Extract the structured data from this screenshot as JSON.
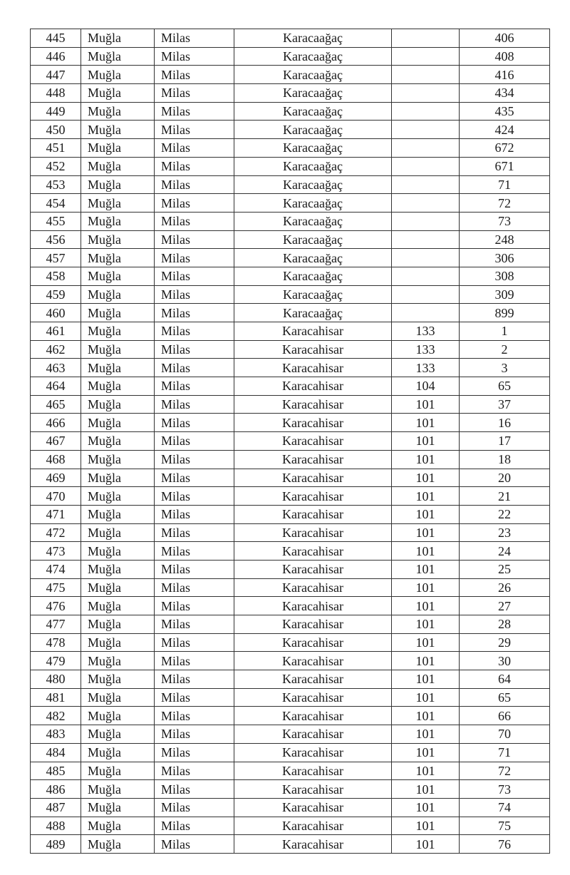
{
  "table": {
    "rows": [
      [
        "445",
        "Muğla",
        "Milas",
        "Karacaağaç",
        "",
        "406"
      ],
      [
        "446",
        "Muğla",
        "Milas",
        "Karacaağaç",
        "",
        "408"
      ],
      [
        "447",
        "Muğla",
        "Milas",
        "Karacaağaç",
        "",
        "416"
      ],
      [
        "448",
        "Muğla",
        "Milas",
        "Karacaağaç",
        "",
        "434"
      ],
      [
        "449",
        "Muğla",
        "Milas",
        "Karacaağaç",
        "",
        "435"
      ],
      [
        "450",
        "Muğla",
        "Milas",
        "Karacaağaç",
        "",
        "424"
      ],
      [
        "451",
        "Muğla",
        "Milas",
        "Karacaağaç",
        "",
        "672"
      ],
      [
        "452",
        "Muğla",
        "Milas",
        "Karacaağaç",
        "",
        "671"
      ],
      [
        "453",
        "Muğla",
        "Milas",
        "Karacaağaç",
        "",
        "71"
      ],
      [
        "454",
        "Muğla",
        "Milas",
        "Karacaağaç",
        "",
        "72"
      ],
      [
        "455",
        "Muğla",
        "Milas",
        "Karacaağaç",
        "",
        "73"
      ],
      [
        "456",
        "Muğla",
        "Milas",
        "Karacaağaç",
        "",
        "248"
      ],
      [
        "457",
        "Muğla",
        "Milas",
        "Karacaağaç",
        "",
        "306"
      ],
      [
        "458",
        "Muğla",
        "Milas",
        "Karacaağaç",
        "",
        "308"
      ],
      [
        "459",
        "Muğla",
        "Milas",
        "Karacaağaç",
        "",
        "309"
      ],
      [
        "460",
        "Muğla",
        "Milas",
        "Karacaağaç",
        "",
        "899"
      ],
      [
        "461",
        "Muğla",
        "Milas",
        "Karacahisar",
        "133",
        "1"
      ],
      [
        "462",
        "Muğla",
        "Milas",
        "Karacahisar",
        "133",
        "2"
      ],
      [
        "463",
        "Muğla",
        "Milas",
        "Karacahisar",
        "133",
        "3"
      ],
      [
        "464",
        "Muğla",
        "Milas",
        "Karacahisar",
        "104",
        "65"
      ],
      [
        "465",
        "Muğla",
        "Milas",
        "Karacahisar",
        "101",
        "37"
      ],
      [
        "466",
        "Muğla",
        "Milas",
        "Karacahisar",
        "101",
        "16"
      ],
      [
        "467",
        "Muğla",
        "Milas",
        "Karacahisar",
        "101",
        "17"
      ],
      [
        "468",
        "Muğla",
        "Milas",
        "Karacahisar",
        "101",
        "18"
      ],
      [
        "469",
        "Muğla",
        "Milas",
        "Karacahisar",
        "101",
        "20"
      ],
      [
        "470",
        "Muğla",
        "Milas",
        "Karacahisar",
        "101",
        "21"
      ],
      [
        "471",
        "Muğla",
        "Milas",
        "Karacahisar",
        "101",
        "22"
      ],
      [
        "472",
        "Muğla",
        "Milas",
        "Karacahisar",
        "101",
        "23"
      ],
      [
        "473",
        "Muğla",
        "Milas",
        "Karacahisar",
        "101",
        "24"
      ],
      [
        "474",
        "Muğla",
        "Milas",
        "Karacahisar",
        "101",
        "25"
      ],
      [
        "475",
        "Muğla",
        "Milas",
        "Karacahisar",
        "101",
        "26"
      ],
      [
        "476",
        "Muğla",
        "Milas",
        "Karacahisar",
        "101",
        "27"
      ],
      [
        "477",
        "Muğla",
        "Milas",
        "Karacahisar",
        "101",
        "28"
      ],
      [
        "478",
        "Muğla",
        "Milas",
        "Karacahisar",
        "101",
        "29"
      ],
      [
        "479",
        "Muğla",
        "Milas",
        "Karacahisar",
        "101",
        "30"
      ],
      [
        "480",
        "Muğla",
        "Milas",
        "Karacahisar",
        "101",
        "64"
      ],
      [
        "481",
        "Muğla",
        "Milas",
        "Karacahisar",
        "101",
        "65"
      ],
      [
        "482",
        "Muğla",
        "Milas",
        "Karacahisar",
        "101",
        "66"
      ],
      [
        "483",
        "Muğla",
        "Milas",
        "Karacahisar",
        "101",
        "70"
      ],
      [
        "484",
        "Muğla",
        "Milas",
        "Karacahisar",
        "101",
        "71"
      ],
      [
        "485",
        "Muğla",
        "Milas",
        "Karacahisar",
        "101",
        "72"
      ],
      [
        "486",
        "Muğla",
        "Milas",
        "Karacahisar",
        "101",
        "73"
      ],
      [
        "487",
        "Muğla",
        "Milas",
        "Karacahisar",
        "101",
        "74"
      ],
      [
        "488",
        "Muğla",
        "Milas",
        "Karacahisar",
        "101",
        "75"
      ],
      [
        "489",
        "Muğla",
        "Milas",
        "Karacahisar",
        "101",
        "76"
      ]
    ]
  }
}
